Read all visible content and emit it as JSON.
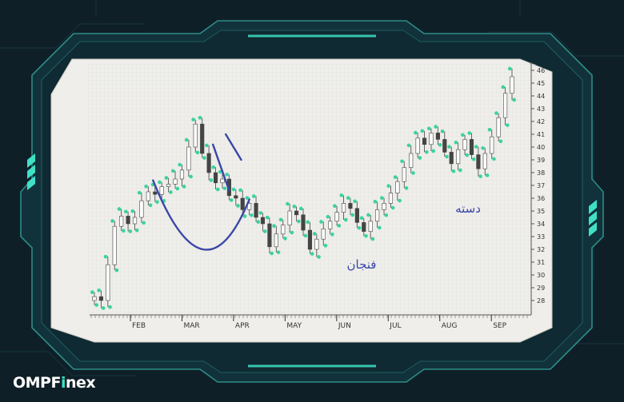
{
  "brand": {
    "prefix": "OMPF",
    "accent": "i",
    "suffix": "nex"
  },
  "colors": {
    "background": "#0e1f27",
    "frame": "#163a44",
    "frame_glow": "#3fe0c6",
    "chart_bg": "#efeeea",
    "candle": "#39d39f",
    "wick": "#555555",
    "trendline": "#3a47a8"
  },
  "chart_data": {
    "type": "candlestick",
    "pattern": "cup-and-handle",
    "annotations": [
      {
        "text": "فنجان",
        "refers_to": "cup"
      },
      {
        "text": "دسته",
        "refers_to": "handle"
      }
    ],
    "x_ticks": [
      "FEB",
      "MAR",
      "APR",
      "MAY",
      "JUN",
      "JUL",
      "AUG",
      "SEP"
    ],
    "y_ticks": [
      28,
      29,
      30,
      31,
      32,
      33,
      34,
      35,
      36,
      37,
      38,
      39,
      40,
      41,
      42,
      43,
      44,
      45,
      46
    ],
    "ylim": [
      27.5,
      46.5
    ],
    "series": [
      {
        "values": [
          28.3,
          28.0,
          30.8,
          33.8,
          34.6,
          34.0,
          34.5,
          35.8,
          36.5,
          36.3,
          36.9,
          37.1,
          37.5,
          38.2,
          40.0,
          41.8,
          39.5,
          38.0,
          37.2,
          37.5,
          36.2,
          36.0,
          35.1,
          35.6,
          34.5,
          34.0,
          32.2,
          33.2,
          33.9,
          35.0,
          34.7,
          33.5,
          32.0,
          32.8,
          33.6,
          34.2,
          34.9,
          35.6,
          35.2,
          34.1,
          33.4,
          34.2,
          35.1,
          35.6,
          36.4,
          37.3,
          38.4,
          39.5,
          40.7,
          40.2,
          41.1,
          40.6,
          39.6,
          38.7,
          39.8,
          40.6,
          39.4,
          38.3,
          39.5,
          40.8,
          42.3,
          44.2,
          45.5
        ]
      }
    ],
    "trendlines": [
      {
        "name": "cup",
        "points": [
          [
            8.7,
            37.4
          ],
          [
            16.1,
            32.0
          ],
          [
            23.0,
            35.9
          ]
        ]
      },
      {
        "name": "handle-upper",
        "points": [
          [
            19.5,
            41.0
          ],
          [
            21.8,
            39.0
          ]
        ]
      },
      {
        "name": "handle-lower",
        "points": [
          [
            17.6,
            40.2
          ],
          [
            20.0,
            36.6
          ]
        ]
      }
    ]
  }
}
